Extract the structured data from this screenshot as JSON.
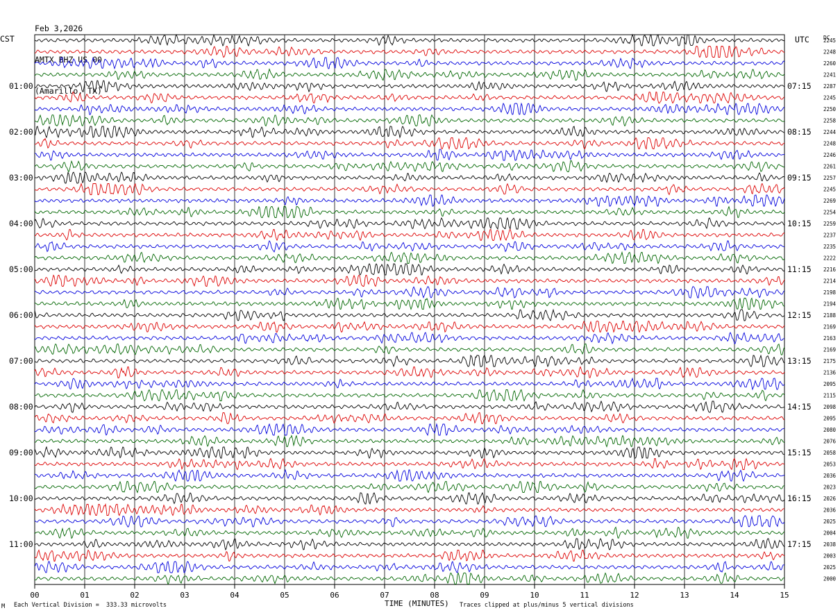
{
  "header": {
    "date": "Feb 3,2026",
    "station": "AMTX BHZ US 00",
    "location": "(Amarillo, TX)"
  },
  "left_zone_label": "CST",
  "right_zone_label": "UTC",
  "dc_label": "DC",
  "footer": {
    "scale_note": "Each Vertical Division =  333.33 microvolts",
    "x_axis_title": "TIME (MINUTES)",
    "clip_note": "Traces clipped at plus/minus 5 vertical divisions",
    "corner_mark": "M"
  },
  "colors": {
    "traces": [
      "#000000",
      "#dd0000",
      "#0000dd",
      "#006600"
    ],
    "grid": "#000000"
  },
  "chart_data": {
    "type": "line",
    "title": "AMTX BHZ US 00",
    "xlabel": "TIME (MINUTES)",
    "xlim": [
      0,
      15
    ],
    "x_ticks": [
      "00",
      "01",
      "02",
      "03",
      "04",
      "05",
      "06",
      "07",
      "08",
      "09",
      "10",
      "11",
      "12",
      "13",
      "14",
      "15"
    ],
    "rows": 48,
    "trace_color_cycle": [
      "black",
      "red",
      "blue",
      "green"
    ],
    "left_hour_labels": [
      {
        "row": 4,
        "label": "01:00"
      },
      {
        "row": 8,
        "label": "02:00"
      },
      {
        "row": 12,
        "label": "03:00"
      },
      {
        "row": 16,
        "label": "04:00"
      },
      {
        "row": 20,
        "label": "05:00"
      },
      {
        "row": 24,
        "label": "06:00"
      },
      {
        "row": 28,
        "label": "07:00"
      },
      {
        "row": 32,
        "label": "08:00"
      },
      {
        "row": 36,
        "label": "09:00"
      },
      {
        "row": 40,
        "label": "10:00"
      },
      {
        "row": 44,
        "label": "11:00"
      }
    ],
    "right_hour_labels": [
      {
        "row": 4,
        "label": "07:15"
      },
      {
        "row": 8,
        "label": "08:15"
      },
      {
        "row": 12,
        "label": "09:15"
      },
      {
        "row": 16,
        "label": "10:15"
      },
      {
        "row": 20,
        "label": "11:15"
      },
      {
        "row": 24,
        "label": "12:15"
      },
      {
        "row": 28,
        "label": "13:15"
      },
      {
        "row": 32,
        "label": "14:15"
      },
      {
        "row": 36,
        "label": "15:15"
      },
      {
        "row": 40,
        "label": "16:15"
      },
      {
        "row": 44,
        "label": "17:15"
      }
    ],
    "dc_values": [
      "2245",
      "2248",
      "2260",
      "2241",
      "2287",
      "2245",
      "2250",
      "2258",
      "2244",
      "2248",
      "2246",
      "2261",
      "2257",
      "2245",
      "2269",
      "2254",
      "2259",
      "2237",
      "2235",
      "2222",
      "2216",
      "2214",
      "2198",
      "2194",
      "2188",
      "2169",
      "2163",
      "2169",
      "2175",
      "2136",
      "2095",
      "2115",
      "2098",
      "2095",
      "2080",
      "2076",
      "2058",
      "2053",
      "2036",
      "2023",
      "2026",
      "2036",
      "2025",
      "2004",
      "2038",
      "2003",
      "2025",
      "2000"
    ]
  }
}
